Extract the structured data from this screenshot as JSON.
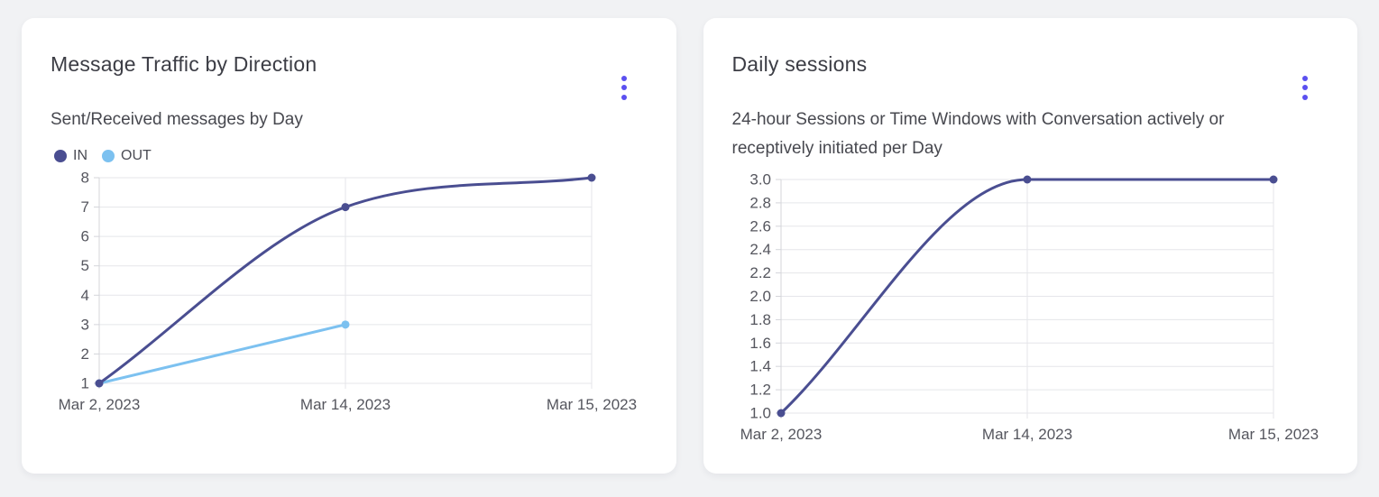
{
  "page": {
    "background": "#F1F2F4"
  },
  "cards": [
    {
      "title": "Message Traffic by Direction",
      "subtitle": "Sent/Received messages by Day",
      "menu_icon": "kebab-menu"
    },
    {
      "title": "Daily sessions",
      "subtitle": "24-hour Sessions or Time Windows with Conversation actively or receptively initiated per Day",
      "menu_icon": "kebab-menu"
    }
  ],
  "colors": {
    "accent_menu": "#5B50F0",
    "series_in": "#4A4E91",
    "series_out": "#7CC1F0",
    "grid": "#E5E6EA",
    "axis": "#D4D5DA",
    "tick_text": "#55565E"
  },
  "chart_data": [
    {
      "type": "line",
      "title": "Message Traffic by Direction",
      "subtitle": "Sent/Received messages by Day",
      "categories": [
        "Mar 2, 2023",
        "Mar 14, 2023",
        "Mar 15, 2023"
      ],
      "series": [
        {
          "name": "IN",
          "color": "#4A4E91",
          "values": [
            1,
            7,
            8
          ]
        },
        {
          "name": "OUT",
          "color": "#7CC1F0",
          "values": [
            1,
            3,
            null
          ]
        }
      ],
      "ylim": [
        1,
        8
      ],
      "y_tick_labels": [
        "1",
        "2",
        "3",
        "4",
        "5",
        "6",
        "7",
        "8"
      ],
      "xlabel": "",
      "ylabel": "",
      "grid": true,
      "legend_position": "top-left",
      "curve": "monotone"
    },
    {
      "type": "line",
      "title": "Daily sessions",
      "subtitle": "24-hour Sessions or Time Windows with Conversation actively or receptively initiated per Day",
      "categories": [
        "Mar 2, 2023",
        "Mar 14, 2023",
        "Mar 15, 2023"
      ],
      "series": [
        {
          "name": "Daily sessions",
          "color": "#4A4E91",
          "values": [
            1.0,
            3.0,
            3.0
          ]
        }
      ],
      "ylim": [
        1.0,
        3.0
      ],
      "y_tick_labels": [
        "1.0",
        "1.2",
        "1.4",
        "1.6",
        "1.8",
        "2.0",
        "2.2",
        "2.4",
        "2.6",
        "2.8",
        "3.0"
      ],
      "xlabel": "",
      "ylabel": "",
      "grid": true,
      "legend_position": "none",
      "curve": "monotone"
    }
  ]
}
